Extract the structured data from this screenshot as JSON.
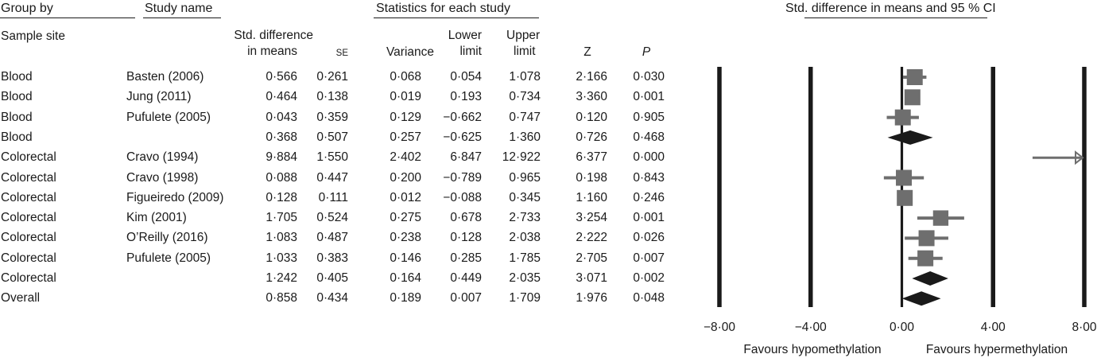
{
  "headers": {
    "group_by": "Group by",
    "study_name": "Study name",
    "stats_title": "Statistics for each study",
    "plot_title": "Std. difference in means and 95 % CI",
    "sample_site": "Sample site",
    "col_smd_1": "Std. difference",
    "col_smd_2": "in means",
    "col_se": "SE",
    "col_var": "Variance",
    "col_lower_1": "Lower",
    "col_lower_2": "limit",
    "col_upper_1": "Upper",
    "col_upper_2": "limit",
    "col_z": "Z",
    "col_p": "P"
  },
  "rows": [
    {
      "site": "Blood",
      "study": "Basten (2006)",
      "smd": "0·566",
      "se": "0·261",
      "var": "0·068",
      "lower": "0·054",
      "upper": "1·078",
      "z": "2·166",
      "p": "0·030"
    },
    {
      "site": "Blood",
      "study": "Jung (2011)",
      "smd": "0·464",
      "se": "0·138",
      "var": "0·019",
      "lower": "0·193",
      "upper": "0·734",
      "z": "3·360",
      "p": "0·001"
    },
    {
      "site": "Blood",
      "study": "Pufulete (2005)",
      "smd": "0·043",
      "se": "0·359",
      "var": "0·129",
      "lower": "−0·662",
      "upper": "0·747",
      "z": "0·120",
      "p": "0·905"
    },
    {
      "site": "Blood",
      "study": "",
      "smd": "0·368",
      "se": "0·507",
      "var": "0·257",
      "lower": "−0·625",
      "upper": "1·360",
      "z": "0·726",
      "p": "0·468"
    },
    {
      "site": "Colorectal",
      "study": "Cravo (1994)",
      "smd": "9·884",
      "se": "1·550",
      "var": "2·402",
      "lower": "6·847",
      "upper": "12·922",
      "z": "6·377",
      "p": "0·000"
    },
    {
      "site": "Colorectal",
      "study": "Cravo (1998)",
      "smd": "0·088",
      "se": "0·447",
      "var": "0·200",
      "lower": "−0·789",
      "upper": "0·965",
      "z": "0·198",
      "p": "0·843"
    },
    {
      "site": "Colorectal",
      "study": "Figueiredo (2009)",
      "smd": "0·128",
      "se": "0·111",
      "var": "0·012",
      "lower": "−0·088",
      "upper": "0·345",
      "z": "1·160",
      "p": "0·246"
    },
    {
      "site": "Colorectal",
      "study": "Kim (2001)",
      "smd": "1·705",
      "se": "0·524",
      "var": "0·275",
      "lower": "0·678",
      "upper": "2·733",
      "z": "3·254",
      "p": "0·001"
    },
    {
      "site": "Colorectal",
      "study": "O’Reilly (2016)",
      "smd": "1·083",
      "se": "0·487",
      "var": "0·238",
      "lower": "0·128",
      "upper": "2·038",
      "z": "2·222",
      "p": "0·026"
    },
    {
      "site": "Colorectal",
      "study": "Pufulete (2005)",
      "smd": "1·033",
      "se": "0·383",
      "var": "0·146",
      "lower": "0·285",
      "upper": "1·785",
      "z": "2·705",
      "p": "0·007"
    },
    {
      "site": "Colorectal",
      "study": "",
      "smd": "1·242",
      "se": "0·405",
      "var": "0·164",
      "lower": "0·449",
      "upper": "2·035",
      "z": "3·071",
      "p": "0·002"
    },
    {
      "site": "Overall",
      "study": "",
      "smd": "0·858",
      "se": "0·434",
      "var": "0·189",
      "lower": "0·007",
      "upper": "1·709",
      "z": "1·976",
      "p": "0·048"
    }
  ],
  "chart_data": {
    "type": "forest",
    "title": "Std. difference in means and 95 % CI",
    "xlim": [
      -8,
      8
    ],
    "x_ticks": [
      "−8·00",
      "−4·00",
      "0·00",
      "4·00",
      "8·00"
    ],
    "x_tick_values": [
      -8,
      -4,
      0,
      4,
      8
    ],
    "label_left": "Favours hypomethylation",
    "label_right": "Favours hypermethylation",
    "points": [
      {
        "study": "Basten (2006)",
        "kind": "study",
        "est": 0.566,
        "lower": 0.054,
        "upper": 1.078,
        "weight": 0.261
      },
      {
        "study": "Jung (2011)",
        "kind": "study",
        "est": 0.464,
        "lower": 0.193,
        "upper": 0.734,
        "weight": 0.138
      },
      {
        "study": "Pufulete (2005)",
        "kind": "study",
        "est": 0.043,
        "lower": -0.662,
        "upper": 0.747,
        "weight": 0.359
      },
      {
        "study": "Blood",
        "kind": "summary",
        "est": 0.368,
        "lower": -0.625,
        "upper": 1.36
      },
      {
        "study": "Cravo (1994)",
        "kind": "arrow",
        "est": 9.884,
        "lower": 6.847,
        "upper": 12.922
      },
      {
        "study": "Cravo (1998)",
        "kind": "study",
        "est": 0.088,
        "lower": -0.789,
        "upper": 0.965,
        "weight": 0.447
      },
      {
        "study": "Figueiredo (2009)",
        "kind": "study",
        "est": 0.128,
        "lower": -0.088,
        "upper": 0.345,
        "weight": 0.111
      },
      {
        "study": "Kim (2001)",
        "kind": "study",
        "est": 1.705,
        "lower": 0.678,
        "upper": 2.733,
        "weight": 0.524
      },
      {
        "study": "O’Reilly (2016)",
        "kind": "study",
        "est": 1.083,
        "lower": 0.128,
        "upper": 2.038,
        "weight": 0.487
      },
      {
        "study": "Pufulete (2005)",
        "kind": "study",
        "est": 1.033,
        "lower": 0.285,
        "upper": 1.785,
        "weight": 0.383
      },
      {
        "study": "Colorectal",
        "kind": "summary",
        "est": 1.242,
        "lower": 0.449,
        "upper": 2.035
      },
      {
        "study": "Overall",
        "kind": "summary",
        "est": 0.858,
        "lower": 0.007,
        "upper": 1.709
      }
    ],
    "colors": {
      "study": "#6e6e6e",
      "summary": "#1a1a1a",
      "axis": "#1a1a1a"
    }
  }
}
